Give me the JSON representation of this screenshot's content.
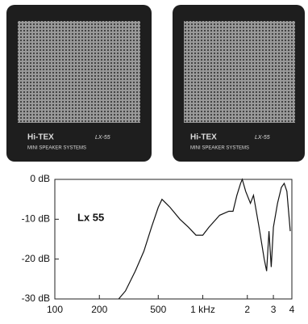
{
  "photo": {
    "left": {
      "brand": "Hi-TEX",
      "model": "LX-55",
      "caption": "MINI SPEAKER SYSTEMS"
    },
    "right": {
      "brand": "Hi-TEX",
      "model": "LX-55",
      "caption": "MINI SPEAKER SYSTEMS"
    }
  },
  "chart_data": {
    "type": "line",
    "annotation": "Lx 55",
    "log_x": true,
    "grid": false,
    "xlim": [
      100,
      4000
    ],
    "ylim": [
      -30,
      0
    ],
    "xticks": [
      100,
      200,
      500,
      {
        "value": 1000,
        "label": "1 kHz"
      },
      {
        "value": 2000,
        "label": "2"
      },
      {
        "value": 3000,
        "label": "3"
      },
      {
        "value": 4000,
        "label": "4"
      }
    ],
    "yticks": [
      {
        "value": 0,
        "label": "0 dB"
      },
      {
        "value": -10,
        "label": "-10 dB"
      },
      {
        "value": -20,
        "label": "-20 dB"
      },
      {
        "value": -30,
        "label": "-30 dB"
      }
    ],
    "x": [
      270,
      300,
      350,
      400,
      450,
      500,
      530,
      600,
      700,
      800,
      900,
      1000,
      1100,
      1300,
      1500,
      1600,
      1700,
      1800,
      1850,
      1950,
      2100,
      2200,
      2400,
      2600,
      2700,
      2800,
      2900,
      3000,
      3200,
      3400,
      3550,
      3700,
      3900
    ],
    "series": [
      {
        "color": "#111111",
        "values": [
          -30,
          -28,
          -23,
          -18,
          -12,
          -7,
          -5,
          -7,
          -10,
          -12,
          -14,
          -14,
          -12,
          -9,
          -8,
          -8,
          -4,
          -1,
          0,
          -3,
          -6,
          -4,
          -12,
          -20,
          -23,
          -13,
          -22,
          -12,
          -6,
          -2,
          -1,
          -3,
          -13
        ]
      }
    ]
  }
}
